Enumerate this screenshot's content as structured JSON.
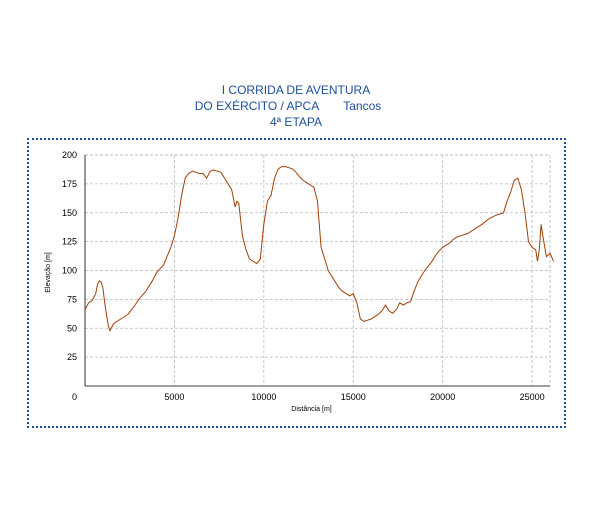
{
  "title_lines": {
    "line1": "I CORRIDA DE AVENTURA",
    "line2": "DO EXÉRCITO / APCA",
    "line2_extra": "Tancos",
    "line3": "4ª ETAPA"
  },
  "colors": {
    "title": "#1f4e9a",
    "frame": "#1f4e9a",
    "line": "#a0400a",
    "grid": "#b8b8b8"
  },
  "chart_data": {
    "type": "line",
    "xlabel": "Distância [m]",
    "ylabel": "Elevação [m]",
    "xlim": [
      0,
      26000
    ],
    "ylim": [
      0,
      200
    ],
    "xticks": [
      "5000",
      "10000",
      "15000",
      "20000",
      "25000"
    ],
    "yticks": [
      "25",
      "50",
      "75",
      "100",
      "125",
      "150",
      "175",
      "200"
    ],
    "origin_label": "0",
    "grid": true,
    "series": [
      {
        "x": [
          0,
          200,
          400,
          600,
          700,
          800,
          900,
          1000,
          1100,
          1200,
          1300,
          1400,
          1600,
          2000,
          2400,
          2800,
          3000,
          3400,
          3800,
          4000,
          4400,
          4800,
          5000,
          5200,
          5400,
          5600,
          5800,
          6000,
          6200,
          6400,
          6600,
          6800,
          7000,
          7200,
          7400,
          7600,
          7800,
          8000,
          8200,
          8400,
          8500,
          8600,
          8800,
          9000,
          9200,
          9400,
          9600,
          9800,
          10000,
          10200,
          10400,
          10600,
          10800,
          11000,
          11200,
          11400,
          11600,
          11800,
          12000,
          12200,
          12400,
          12600,
          12800,
          13000,
          13200,
          13400,
          13600,
          13800,
          14000,
          14200,
          14400,
          14600,
          14800,
          15000,
          15200,
          15400,
          15600,
          15800,
          16000,
          16200,
          16400,
          16600,
          16800,
          17000,
          17200,
          17400,
          17600,
          17800,
          18000,
          18200,
          18400,
          18600,
          18800,
          19000,
          19200,
          19400,
          19600,
          19800,
          20000,
          20200,
          20400,
          20600,
          20800,
          21000,
          21400,
          21800,
          22200,
          22600,
          23000,
          23400,
          23600,
          23800,
          24000,
          24200,
          24400,
          24600,
          24800,
          25000,
          25200,
          25300,
          25400,
          25500,
          25600,
          25800,
          26000,
          26200
        ],
        "values": [
          66,
          72,
          74,
          80,
          88,
          91,
          90,
          85,
          72,
          62,
          52,
          48,
          54,
          58,
          62,
          70,
          75,
          82,
          92,
          98,
          105,
          120,
          130,
          145,
          165,
          180,
          184,
          186,
          185,
          184,
          184,
          180,
          186,
          187,
          186,
          185,
          180,
          175,
          170,
          155,
          160,
          158,
          130,
          118,
          110,
          108,
          106,
          110,
          140,
          160,
          165,
          180,
          188,
          190,
          190,
          189,
          188,
          185,
          181,
          178,
          176,
          174,
          172,
          160,
          120,
          110,
          100,
          95,
          90,
          85,
          82,
          80,
          78,
          80,
          72,
          58,
          56,
          57,
          58,
          60,
          62,
          65,
          70,
          65,
          63,
          66,
          72,
          70,
          72,
          73,
          82,
          90,
          95,
          100,
          104,
          108,
          113,
          117,
          120,
          122,
          124,
          127,
          129,
          130,
          132,
          136,
          140,
          145,
          148,
          150,
          160,
          168,
          178,
          180,
          170,
          150,
          125,
          120,
          118,
          108,
          118,
          140,
          130,
          112,
          115,
          108
        ]
      }
    ]
  }
}
